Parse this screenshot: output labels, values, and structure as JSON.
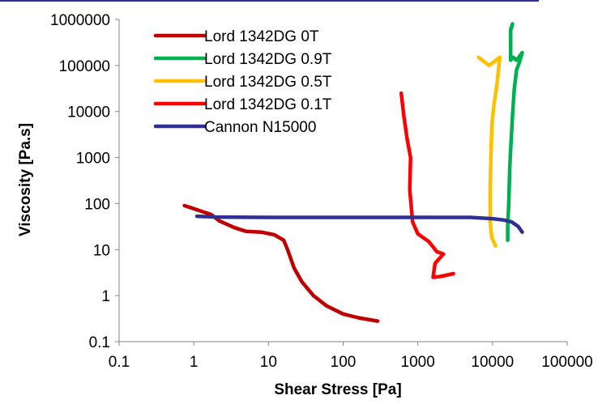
{
  "chart_data": {
    "type": "line",
    "title": "",
    "xlabel": "Shear Stress [Pa]",
    "ylabel": "Viscosity [Pa.s]",
    "x_scale": "log",
    "y_scale": "log",
    "xlim": [
      0.1,
      100000
    ],
    "ylim": [
      0.1,
      1000000
    ],
    "x_tick_labels": [
      "0.1",
      "1",
      "10",
      "100",
      "1000",
      "10000",
      "100000"
    ],
    "y_tick_labels": [
      "0.1",
      "1",
      "10",
      "100",
      "1000",
      "10000",
      "100000",
      "1000000"
    ],
    "grid": false,
    "legend_position": "top-left",
    "series": [
      {
        "name": "Lord 1342DG 0T",
        "color": "#C00000",
        "points": [
          [
            0.75,
            90
          ],
          [
            1.2,
            70
          ],
          [
            1.7,
            58
          ],
          [
            2.2,
            42
          ],
          [
            3.5,
            30
          ],
          [
            5,
            25
          ],
          [
            8,
            24
          ],
          [
            12,
            21
          ],
          [
            16,
            16
          ],
          [
            18,
            10
          ],
          [
            22,
            4
          ],
          [
            28,
            2
          ],
          [
            40,
            1
          ],
          [
            60,
            0.6
          ],
          [
            100,
            0.4
          ],
          [
            160,
            0.33
          ],
          [
            290,
            0.28
          ]
        ]
      },
      {
        "name": "Lord 1342DG 0.9T",
        "color": "#00B050",
        "points": [
          [
            16000,
            16
          ],
          [
            16000,
            35
          ],
          [
            16500,
            100
          ],
          [
            17000,
            600
          ],
          [
            17500,
            1500
          ],
          [
            18500,
            8000
          ],
          [
            19500,
            30000
          ],
          [
            21000,
            80000
          ],
          [
            23000,
            120000
          ],
          [
            25000,
            190000
          ],
          [
            21000,
            130000
          ],
          [
            19000,
            150000
          ],
          [
            17500,
            130000
          ],
          [
            17500,
            600000
          ],
          [
            18500,
            800000
          ],
          [
            18000,
            650000
          ]
        ]
      },
      {
        "name": "Lord 1342DG 0.5T",
        "color": "#FFC000",
        "points": [
          [
            11000,
            12
          ],
          [
            9800,
            18
          ],
          [
            9300,
            40
          ],
          [
            9300,
            200
          ],
          [
            9500,
            1000
          ],
          [
            9800,
            5000
          ],
          [
            10500,
            15000
          ],
          [
            11500,
            40000
          ],
          [
            12500,
            150000
          ],
          [
            9000,
            100000
          ],
          [
            6500,
            150000
          ]
        ]
      },
      {
        "name": "Lord 1342DG 0.1T",
        "color": "#FF0000",
        "points": [
          [
            3000,
            3
          ],
          [
            2000,
            2.6
          ],
          [
            1600,
            2.5
          ],
          [
            1700,
            5
          ],
          [
            2200,
            8
          ],
          [
            1800,
            9
          ],
          [
            1400,
            15
          ],
          [
            1000,
            22
          ],
          [
            850,
            40
          ],
          [
            780,
            200
          ],
          [
            800,
            1000
          ],
          [
            720,
            2500
          ],
          [
            650,
            8000
          ],
          [
            600,
            25000
          ]
        ]
      },
      {
        "name": "Cannon N15000",
        "color": "#2E3192",
        "points": [
          [
            1.1,
            53
          ],
          [
            2,
            51
          ],
          [
            10,
            50
          ],
          [
            100,
            50
          ],
          [
            1000,
            50
          ],
          [
            5000,
            50
          ],
          [
            10000,
            47
          ],
          [
            14000,
            44
          ],
          [
            18000,
            40
          ],
          [
            22000,
            32
          ],
          [
            25000,
            24
          ]
        ]
      }
    ]
  }
}
